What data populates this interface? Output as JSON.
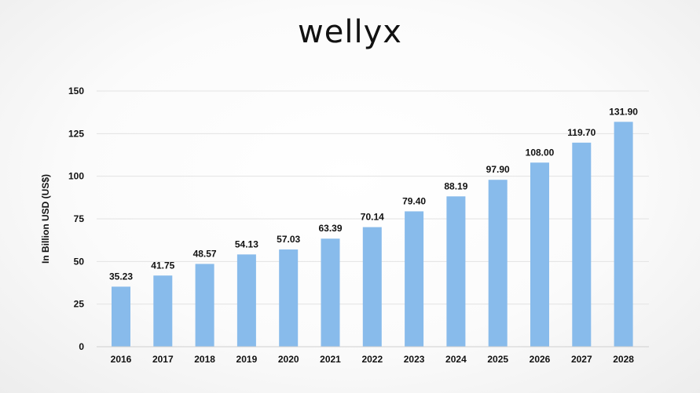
{
  "brand": {
    "logo_text": "wellyx"
  },
  "chart_data": {
    "type": "bar",
    "categories": [
      "2016",
      "2017",
      "2018",
      "2019",
      "2020",
      "2021",
      "2022",
      "2023",
      "2024",
      "2025",
      "2026",
      "2027",
      "2028"
    ],
    "values": [
      35.23,
      41.75,
      48.57,
      54.13,
      57.03,
      63.39,
      70.14,
      79.4,
      88.19,
      97.9,
      108.0,
      119.7,
      131.9
    ],
    "value_labels": [
      "35.23",
      "41.75",
      "48.57",
      "54.13",
      "57.03",
      "63.39",
      "70.14",
      "79.40",
      "88.19",
      "97.90",
      "108.00",
      "119.70",
      "131.90"
    ],
    "title": "",
    "xlabel": "",
    "ylabel": "In Billion USD (US$)",
    "ylim": [
      0,
      150
    ],
    "yticks": [
      0,
      25,
      50,
      75,
      100,
      125,
      150
    ],
    "grid": true,
    "legend": "none",
    "bar_color": "#88bbeb",
    "grid_color": "#e3e3e3",
    "axis_color": "#cfcfcf"
  }
}
